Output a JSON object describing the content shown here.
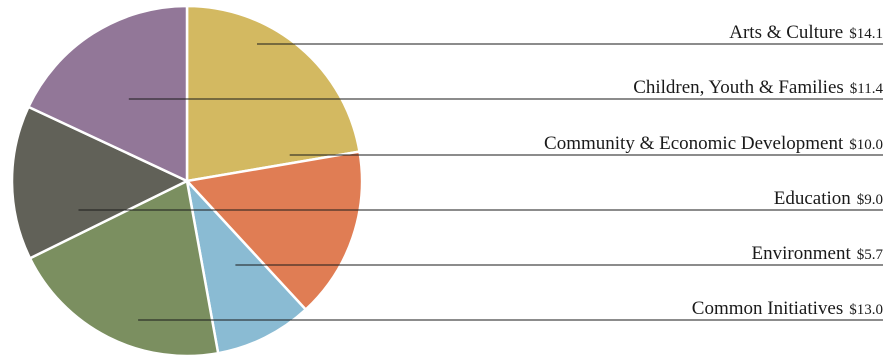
{
  "chart_data": {
    "type": "pie",
    "title": "",
    "categories": [
      "Arts & Culture",
      "Children, Youth & Families",
      "Community & Economic Development",
      "Education",
      "Environment",
      "Common Initiatives"
    ],
    "values": [
      14.1,
      11.4,
      10.0,
      9.0,
      5.7,
      13.0
    ],
    "value_labels": [
      "$14.1",
      "$11.4",
      "$10.0",
      "$9.0",
      "$5.7",
      "$13.0"
    ],
    "colors": [
      "#d3b961",
      "#927798",
      "#e07d54",
      "#616158",
      "#8abbd3",
      "#7b8f60"
    ],
    "slice_order": [
      0,
      2,
      4,
      5,
      3,
      1
    ],
    "start_angle_deg": 0,
    "direction": "clockwise",
    "legend": "right"
  }
}
